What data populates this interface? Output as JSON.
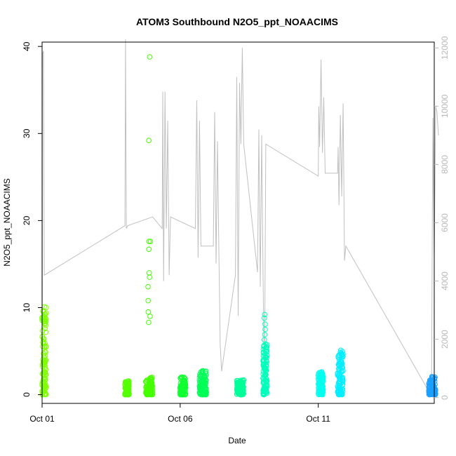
{
  "chart_data": {
    "type": "scatter",
    "title": "ATOM3 Southbound N2O5_ppt_NOAACIMS",
    "xlabel": "Date",
    "ylabel": "N2O5_ppt_NOAACIMS",
    "xlim": [
      0.0,
      14.2
    ],
    "ylim": [
      -1.0,
      40.5
    ],
    "x_ticks": [
      {
        "value": 0.0,
        "label": "Oct 01"
      },
      {
        "value": 5.0,
        "label": "Oct 06"
      },
      {
        "value": 10.0,
        "label": "Oct 11"
      }
    ],
    "y_ticks": [
      0,
      10,
      20,
      30,
      40
    ],
    "y2_lim": [
      -200,
      12200
    ],
    "y2_ticks": [
      0,
      2000,
      4000,
      6000,
      8000,
      10000,
      12000
    ],
    "grid": false,
    "legend": "none",
    "colors": {
      "axis": "#000000",
      "secondary_axis": "#b8b8b8",
      "altitude_line": "#c0c0c0"
    },
    "secondary_series": {
      "name": "",
      "color": "#c0c0c0",
      "points": [
        [
          0.0,
          50
        ],
        [
          0.02,
          11800
        ],
        [
          0.05,
          11900
        ],
        [
          0.08,
          4200
        ],
        [
          3.0,
          5900
        ],
        [
          3.02,
          12300
        ],
        [
          3.05,
          5800
        ],
        [
          3.1,
          5900
        ],
        [
          4.0,
          6200
        ],
        [
          4.35,
          5800
        ],
        [
          4.37,
          10500
        ],
        [
          4.4,
          4000
        ],
        [
          4.45,
          10500
        ],
        [
          4.5,
          5800
        ],
        [
          4.55,
          9500
        ],
        [
          4.6,
          4200
        ],
        [
          4.65,
          6200
        ],
        [
          5.55,
          5800
        ],
        [
          5.6,
          10200
        ],
        [
          5.65,
          4800
        ],
        [
          5.7,
          9500
        ],
        [
          5.75,
          5200
        ],
        [
          6.2,
          5200
        ],
        [
          6.25,
          9800
        ],
        [
          6.3,
          4600
        ],
        [
          6.35,
          8800
        ],
        [
          6.4,
          5200
        ],
        [
          6.45,
          1800
        ],
        [
          6.5,
          900
        ],
        [
          7.0,
          4200
        ],
        [
          7.05,
          11000
        ],
        [
          7.1,
          2800
        ],
        [
          7.15,
          10800
        ],
        [
          7.2,
          8700
        ],
        [
          7.25,
          12000
        ],
        [
          7.3,
          8700
        ],
        [
          7.8,
          4300
        ],
        [
          7.85,
          9200
        ],
        [
          7.9,
          3800
        ],
        [
          7.95,
          9000
        ],
        [
          8.0,
          4400
        ],
        [
          8.05,
          200
        ],
        [
          8.1,
          8700
        ],
        [
          10.0,
          7600
        ],
        [
          10.02,
          10000
        ],
        [
          10.05,
          8600
        ],
        [
          10.1,
          11600
        ],
        [
          10.15,
          8400
        ],
        [
          10.2,
          10300
        ],
        [
          10.25,
          7700
        ],
        [
          10.7,
          7700
        ],
        [
          10.72,
          8600
        ],
        [
          10.75,
          6600
        ],
        [
          10.8,
          9700
        ],
        [
          10.85,
          6900
        ],
        [
          10.9,
          10100
        ],
        [
          10.95,
          4700
        ],
        [
          11.0,
          5200
        ],
        [
          14.1,
          50
        ],
        [
          14.15,
          9600
        ],
        [
          14.2,
          4800
        ],
        [
          14.25,
          10000
        ],
        [
          14.3,
          9800
        ],
        [
          14.35,
          9000
        ]
      ]
    },
    "series": [
      {
        "name": "",
        "color": "#7fff00",
        "x_range": [
          0.0,
          0.15
        ],
        "y_max": 10.1,
        "y_sparse": [
          9.5,
          10.1,
          9.0,
          8.5,
          7.6,
          6.4
        ]
      },
      {
        "name": "",
        "color": "#55ff00",
        "x_range": [
          3.0,
          3.15
        ],
        "y_max": 1.6,
        "y_sparse": []
      },
      {
        "name": "",
        "color": "#44ff00",
        "x_range": [
          3.75,
          4.0
        ],
        "y_max": 2.0,
        "y_sparse": [
          38.8,
          29.2,
          17.6,
          17.6,
          16.7,
          14.0,
          13.5,
          12.4,
          10.8,
          9.5,
          9.0,
          8.3
        ]
      },
      {
        "name": "",
        "color": "#10ff30",
        "x_range": [
          5.0,
          5.2
        ],
        "y_max": 2.1,
        "y_sparse": []
      },
      {
        "name": "",
        "color": "#00ff55",
        "x_range": [
          5.7,
          5.95
        ],
        "y_max": 2.8,
        "y_sparse": []
      },
      {
        "name": "",
        "color": "#00ff99",
        "x_range": [
          7.05,
          7.3
        ],
        "y_max": 1.7,
        "y_sparse": []
      },
      {
        "name": "",
        "color": "#00ffbb",
        "x_range": [
          8.0,
          8.15
        ],
        "y_max": 5.9,
        "y_sparse": [
          9.2,
          8.8,
          8.1,
          7.5,
          6.9,
          6.3
        ]
      },
      {
        "name": "",
        "color": "#00ffee",
        "x_range": [
          10.0,
          10.18
        ],
        "y_max": 2.7,
        "y_sparse": []
      },
      {
        "name": "",
        "color": "#00eeff",
        "x_range": [
          10.7,
          10.9
        ],
        "y_max": 5.3,
        "y_sparse": []
      },
      {
        "name": "",
        "color": "#1a9fff",
        "x_range": [
          14.0,
          14.25
        ],
        "y_max": 2.1,
        "y_sparse": []
      }
    ]
  }
}
